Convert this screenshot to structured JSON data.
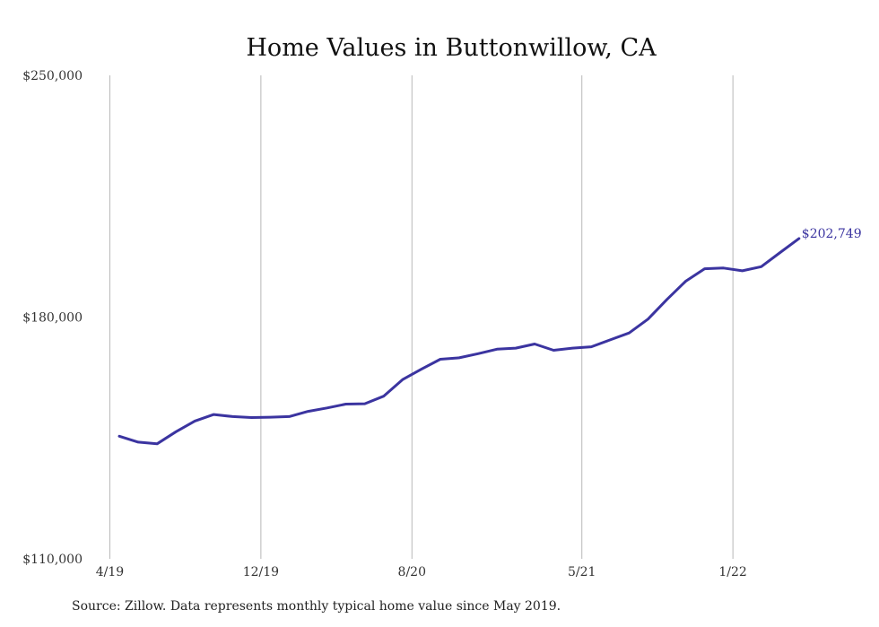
{
  "chart_data": {
    "type": "line",
    "title": "Home Values in Buttonwillow, CA",
    "xlabel": "",
    "ylabel": "",
    "ylim": [
      110000,
      250000
    ],
    "yticks": [
      "$110,000",
      "$180,000",
      "$250,000"
    ],
    "ytick_values": [
      110000,
      180000,
      250000
    ],
    "xticks": [
      "4/19",
      "12/19",
      "8/20",
      "5/21",
      "1/22"
    ],
    "xtick_indices": [
      -0.5,
      7.5,
      15.5,
      24.5,
      32.5
    ],
    "grid": "vertical",
    "legend": "none",
    "series": [
      {
        "color": "#3b34a0",
        "x": [
          "5/19",
          "6/19",
          "7/19",
          "8/19",
          "9/19",
          "10/19",
          "11/19",
          "12/19",
          "1/20",
          "2/20",
          "3/20",
          "4/20",
          "5/20",
          "6/20",
          "7/20",
          "8/20",
          "9/20",
          "10/20",
          "11/20",
          "12/20",
          "1/21",
          "2/21",
          "3/21",
          "4/21",
          "5/21",
          "6/21",
          "7/21",
          "8/21",
          "9/21",
          "10/21",
          "11/21",
          "12/21",
          "1/22",
          "2/22",
          "3/22",
          "4/22",
          "5/22"
        ],
        "values": [
          145500,
          143800,
          143300,
          146800,
          149900,
          151800,
          151200,
          150900,
          151000,
          151200,
          152700,
          153700,
          154800,
          154900,
          157100,
          161900,
          164900,
          167800,
          168200,
          169400,
          170700,
          171000,
          172200,
          170400,
          171000,
          171400,
          173400,
          175400,
          179400,
          185100,
          190400,
          194000,
          194200,
          193400,
          194600,
          198700,
          202749
        ]
      }
    ],
    "end_label": "$202,749"
  },
  "footer": {
    "source": "Source: Zillow. Data represents monthly typical home value since May 2019."
  }
}
